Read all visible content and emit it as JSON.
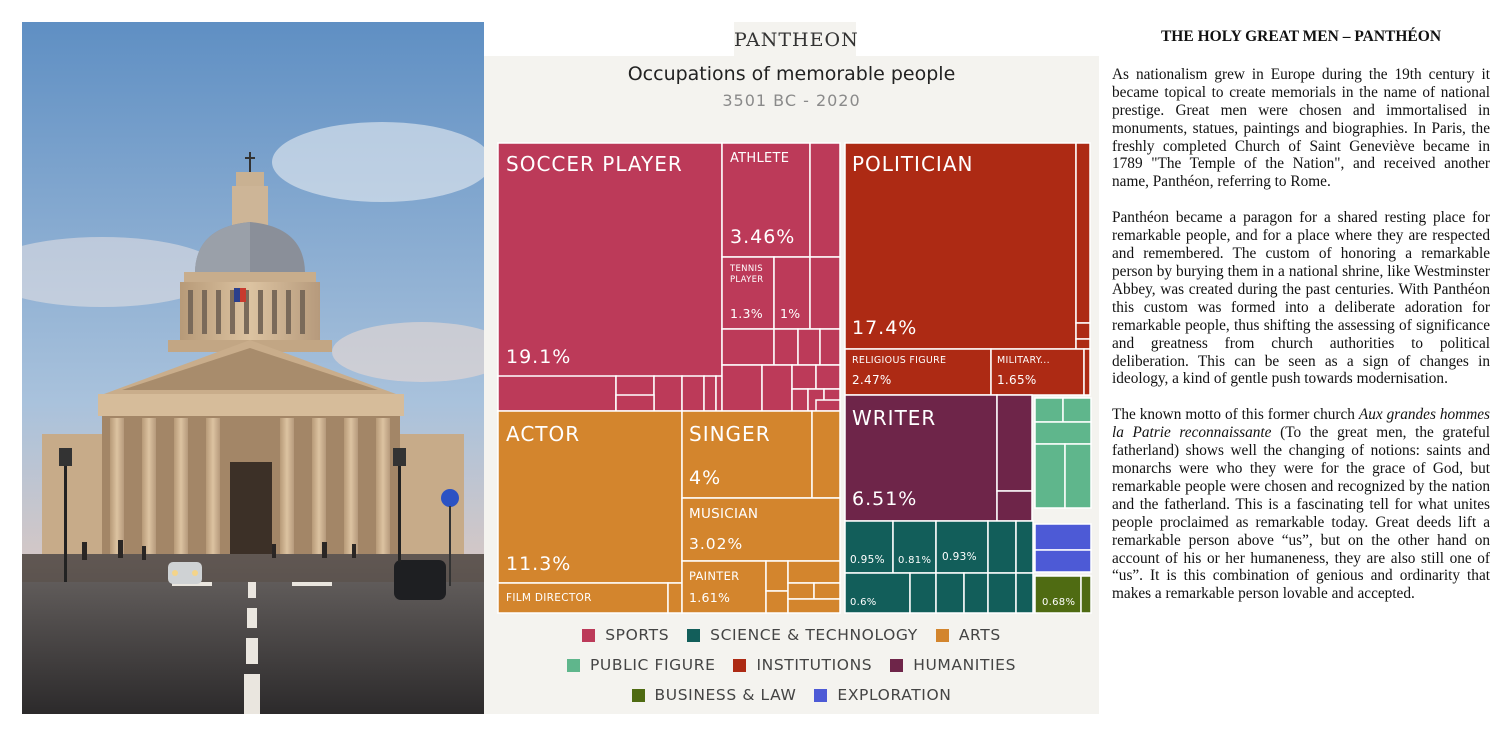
{
  "brand": "PANTHEON",
  "chart_data": {
    "type": "treemap",
    "title": "Occupations of memorable people",
    "subtitle": "3501 BC - 2020",
    "legend": [
      {
        "name": "SPORTS",
        "color": "#bc3a59"
      },
      {
        "name": "SCIENCE & TECHNOLOGY",
        "color": "#125e5a"
      },
      {
        "name": "ARTS",
        "color": "#d3852d"
      },
      {
        "name": "PUBLIC FIGURE",
        "color": "#5fb68c"
      },
      {
        "name": "INSTITUTIONS",
        "color": "#ad2a14"
      },
      {
        "name": "HUMANITIES",
        "color": "#6e2549"
      },
      {
        "name": "BUSINESS & LAW",
        "color": "#4f6b12"
      },
      {
        "name": "EXPLORATION",
        "color": "#4d5ad6"
      }
    ],
    "cells": [
      {
        "category": "SPORTS",
        "label": "SOCCER PLAYER",
        "value": "19.1%"
      },
      {
        "category": "SPORTS",
        "label": "ATHLETE",
        "value": "3.46%"
      },
      {
        "category": "SPORTS",
        "label": "TENNIS PLAYER",
        "value": "1.3%"
      },
      {
        "category": "SPORTS",
        "label": "",
        "value": "1%"
      },
      {
        "category": "INSTITUTIONS",
        "label": "POLITICIAN",
        "value": "17.4%"
      },
      {
        "category": "INSTITUTIONS",
        "label": "RELIGIOUS FIGURE",
        "value": "2.47%"
      },
      {
        "category": "INSTITUTIONS",
        "label": "MILITARY...",
        "value": "1.65%"
      },
      {
        "category": "ARTS",
        "label": "ACTOR",
        "value": "11.3%"
      },
      {
        "category": "ARTS",
        "label": "FILM DIRECTOR",
        "value": ""
      },
      {
        "category": "ARTS",
        "label": "SINGER",
        "value": "4%"
      },
      {
        "category": "ARTS",
        "label": "MUSICIAN",
        "value": "3.02%"
      },
      {
        "category": "ARTS",
        "label": "PAINTER",
        "value": "1.61%"
      },
      {
        "category": "HUMANITIES",
        "label": "WRITER",
        "value": "6.51%"
      },
      {
        "category": "SCIENCE & TECHNOLOGY",
        "label": "",
        "value": "0.95%"
      },
      {
        "category": "SCIENCE & TECHNOLOGY",
        "label": "",
        "value": "0.81%"
      },
      {
        "category": "SCIENCE & TECHNOLOGY",
        "label": "",
        "value": "0.93%"
      },
      {
        "category": "SCIENCE & TECHNOLOGY",
        "label": "",
        "value": "0.6%"
      },
      {
        "category": "BUSINESS & LAW",
        "label": "",
        "value": "0.68%"
      }
    ]
  },
  "article": {
    "title": "THE HOLY GREAT MEN – PANTHÉON",
    "p1": "As nationalism grew in Europe during the 19th century it became topical to create memorials in the name of national prestige. Great men were chosen and immortalised in monuments, statues, paintings and biographies. In Paris, the freshly completed Church of Saint Geneviève became in 1789 \"The Temple of the Nation\", and received another name, Panthéon, referring to Rome.",
    "p2": "Panthéon became a paragon for a shared resting place for remarkable people, and for a place where they are respected and remembered. The custom of honoring a remarkable person by burying them in a national shrine, like Westminster Abbey, was created during the past centuries. With Panthéon this custom was formed into a deliberate adoration for remarkable people, thus shifting the assessing of significance and greatness from church authorities to political deliberation. This can be seen as a sign of changes in ideology, a kind of gentle push towards modernisation.",
    "p3_before": "The known motto of this former church ",
    "p3_motto": "Aux grandes hommes la Patrie reconnaissante",
    "p3_after": " (To the great men, the grateful fatherland) shows well the changing of notions: saints and monarchs were who they were for the grace of God, but remarkable people were chosen and recognized by the nation and the fatherland. This is a fascinating tell for what unites people proclaimed as remarkable today. Great deeds lift a remarkable person above “us”, but on the other hand on account of his or her humaneness, they are also still one of “us”. It is this combination of genious and ordinarity that makes a remarkable person lovable and accepted."
  }
}
